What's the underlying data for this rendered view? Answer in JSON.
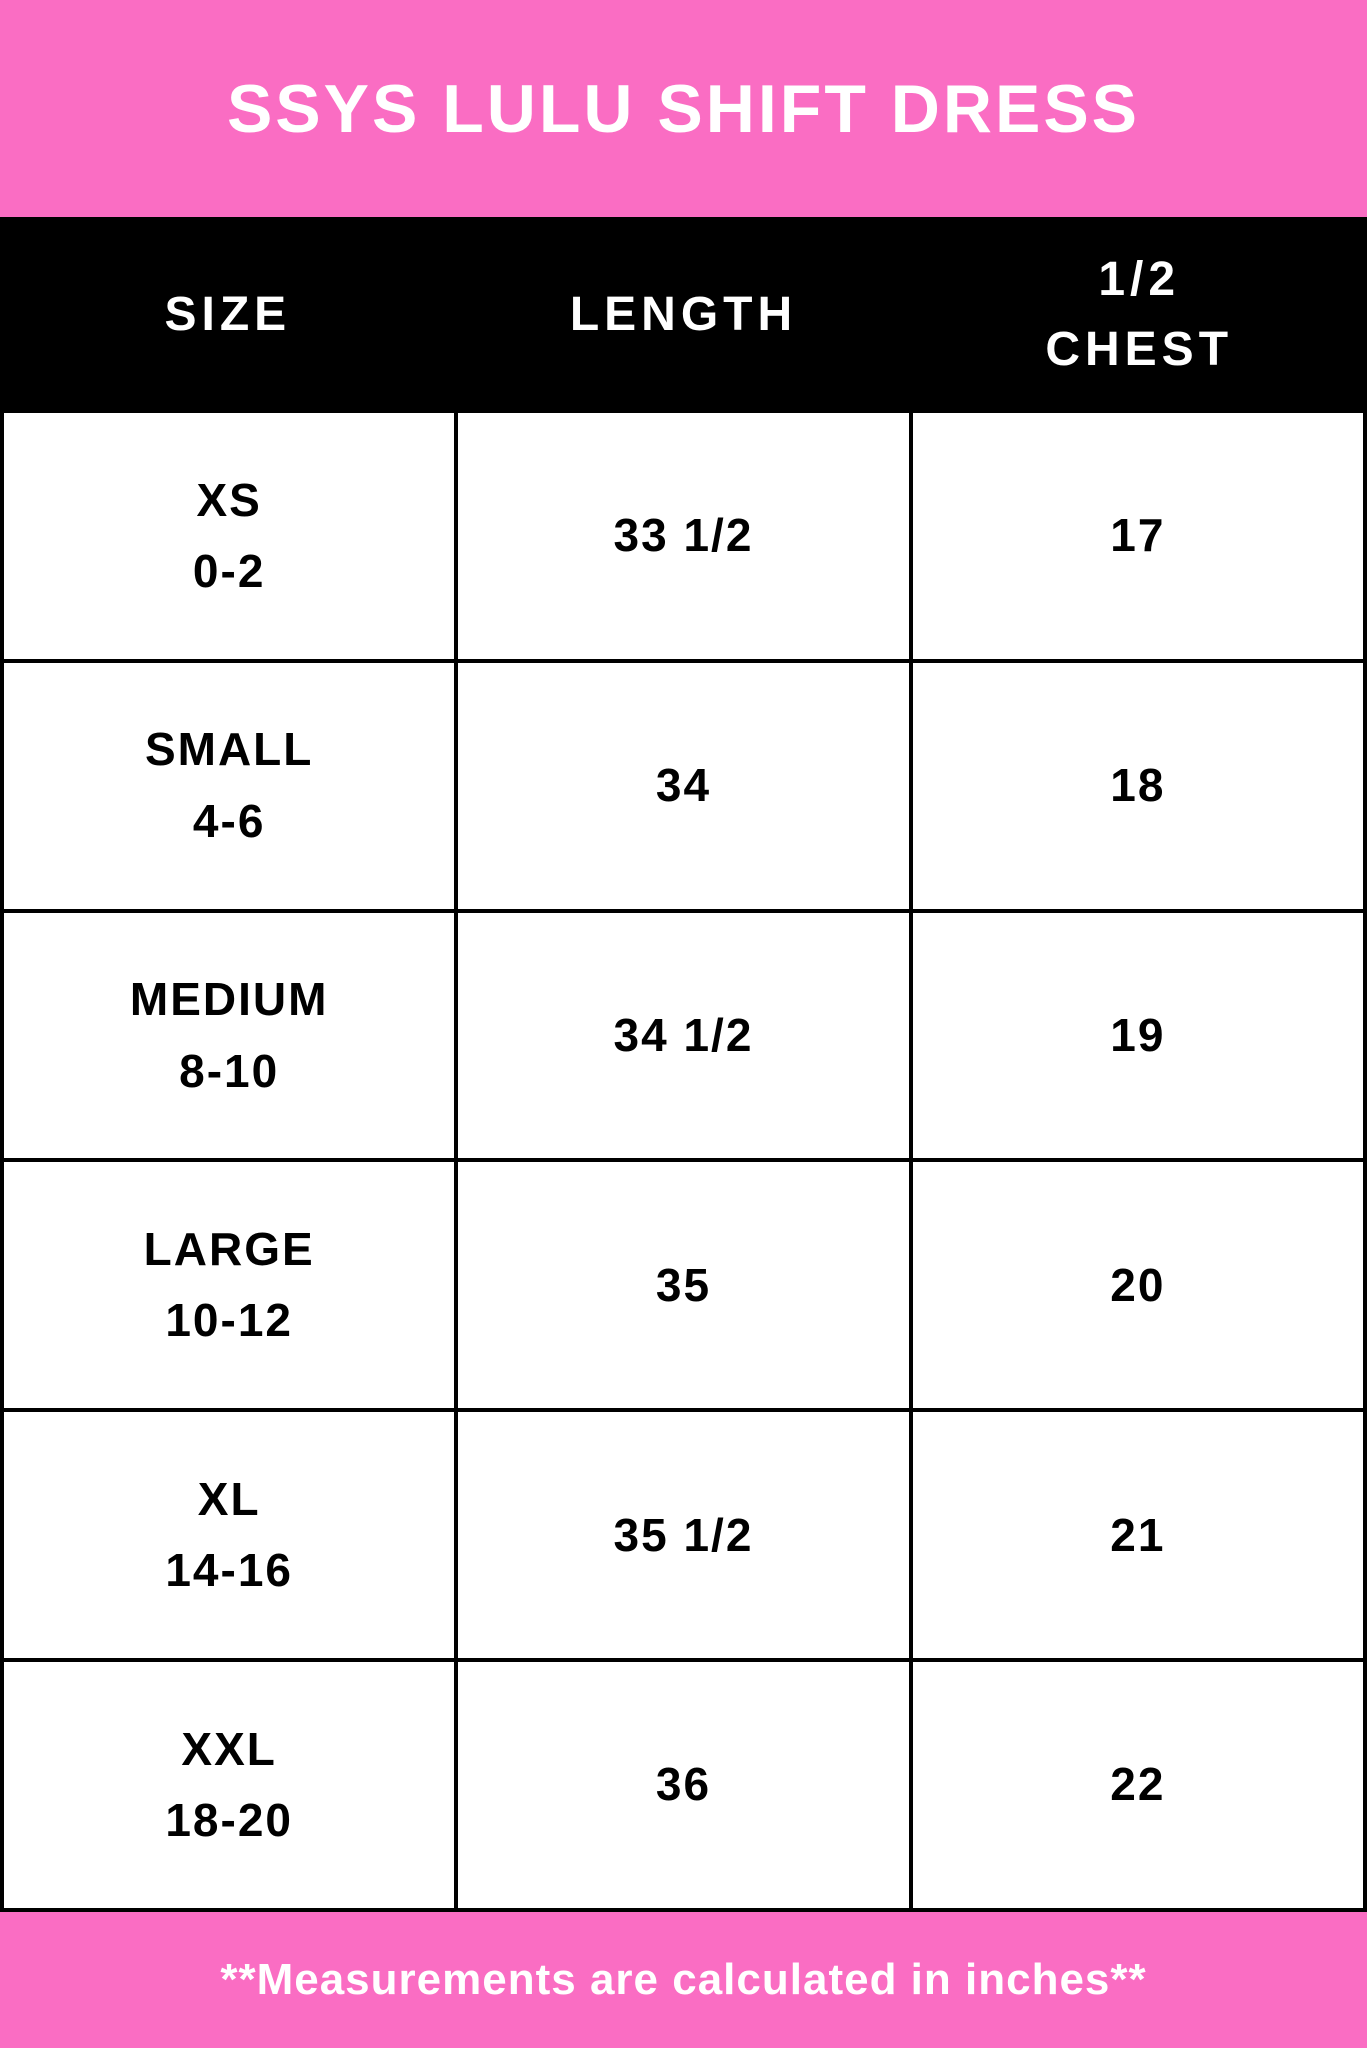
{
  "title": "SSYS LULU SHIFT DRESS",
  "header": {
    "col_size": "SIZE",
    "col_length": "LENGTH",
    "col_chest_line1": "1/2",
    "col_chest_line2": "CHEST"
  },
  "rows": [
    {
      "size": "XS",
      "size_range": "0-2",
      "length": "33 1/2",
      "half_chest": "17"
    },
    {
      "size": "SMALL",
      "size_range": "4-6",
      "length": "34",
      "half_chest": "18"
    },
    {
      "size": "MEDIUM",
      "size_range": "8-10",
      "length": "34 1/2",
      "half_chest": "19"
    },
    {
      "size": "LARGE",
      "size_range": "10-12",
      "length": "35",
      "half_chest": "20"
    },
    {
      "size": "XL",
      "size_range": "14-16",
      "length": "35 1/2",
      "half_chest": "21"
    },
    {
      "size": "XXL",
      "size_range": "18-20",
      "length": "36",
      "half_chest": "22"
    }
  ],
  "footer": {
    "note": "**Measurements are calculated in inches**"
  },
  "colors": {
    "pink": "#fa6dc3",
    "black": "#000000",
    "white": "#ffffff"
  },
  "chart_data": {
    "type": "table",
    "title": "SSYS LULU SHIFT DRESS",
    "columns": [
      "SIZE",
      "LENGTH",
      "1/2 CHEST"
    ],
    "rows": [
      [
        "XS 0-2",
        "33 1/2",
        "17"
      ],
      [
        "SMALL 4-6",
        "34",
        "18"
      ],
      [
        "MEDIUM 8-10",
        "34 1/2",
        "19"
      ],
      [
        "LARGE 10-12",
        "35",
        "20"
      ],
      [
        "XL 14-16",
        "35 1/2",
        "21"
      ],
      [
        "XXL 18-20",
        "36",
        "22"
      ]
    ],
    "footnote": "**Measurements are calculated in inches**",
    "units": "inches"
  }
}
